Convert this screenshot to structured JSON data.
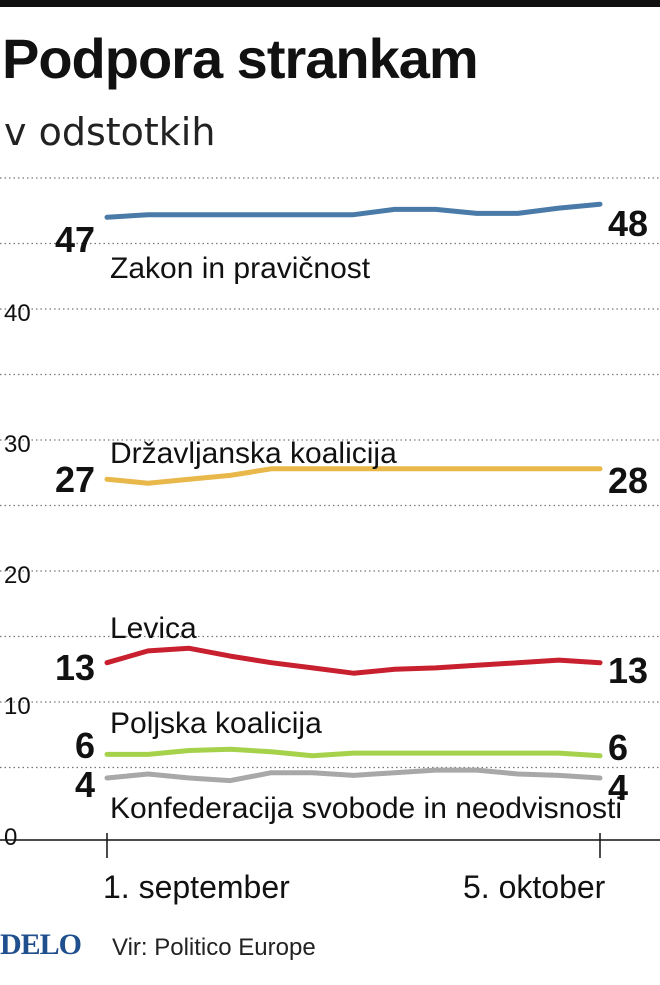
{
  "header": {
    "title": "Podpora strankam",
    "subtitle": "v odstotkih"
  },
  "footer": {
    "logo": "DELO",
    "source": "Vir: Politico Europe"
  },
  "colors": {
    "zakon": "#4a7aa8",
    "drzavljanska": "#e8b84a",
    "levica": "#c8202e",
    "poljska": "#a6d14a",
    "konfederacija": "#a8a8a8",
    "grid": "#777777",
    "axis": "#111111"
  },
  "chart_data": {
    "type": "line",
    "y_ticks": [
      "40",
      "30",
      "20",
      "10",
      "0"
    ],
    "x_tick_labels": [
      "1. september",
      "5. oktober"
    ],
    "ylim": [
      0,
      50
    ],
    "grid": "horizontal-dotted",
    "series": [
      {
        "name": "Zakon in pravičnost",
        "color_key": "zakon",
        "start_label": "47",
        "end_label": "48",
        "values": [
          47,
          47.2,
          47.2,
          47.2,
          47.2,
          47.2,
          47.2,
          47.6,
          47.6,
          47.3,
          47.3,
          47.7,
          48
        ]
      },
      {
        "name": "Državljanska koalicija",
        "color_key": "drzavljanska",
        "start_label": "27",
        "end_label": "28",
        "values": [
          27,
          26.7,
          27,
          27.3,
          27.8,
          27.8,
          27.8,
          27.8,
          27.8,
          27.8,
          27.8,
          27.8,
          27.8
        ]
      },
      {
        "name": "Levica",
        "color_key": "levica",
        "start_label": "13",
        "end_label": "13",
        "values": [
          13,
          13.9,
          14.1,
          13.5,
          13,
          12.6,
          12.2,
          12.5,
          12.6,
          12.8,
          13,
          13.2,
          13
        ]
      },
      {
        "name": "Poljska koalicija",
        "color_key": "poljska",
        "start_label": "6",
        "end_label": "6",
        "values": [
          6,
          6,
          6.3,
          6.4,
          6.2,
          5.9,
          6.1,
          6.1,
          6.1,
          6.1,
          6.1,
          6.1,
          5.9
        ]
      },
      {
        "name": "Konfederacija svobode in neodvisnosti",
        "color_key": "konfederacija",
        "start_label": "4",
        "end_label": "4",
        "values": [
          4.2,
          4.5,
          4.2,
          4,
          4.6,
          4.6,
          4.4,
          4.6,
          4.8,
          4.8,
          4.5,
          4.4,
          4.2
        ]
      }
    ]
  }
}
